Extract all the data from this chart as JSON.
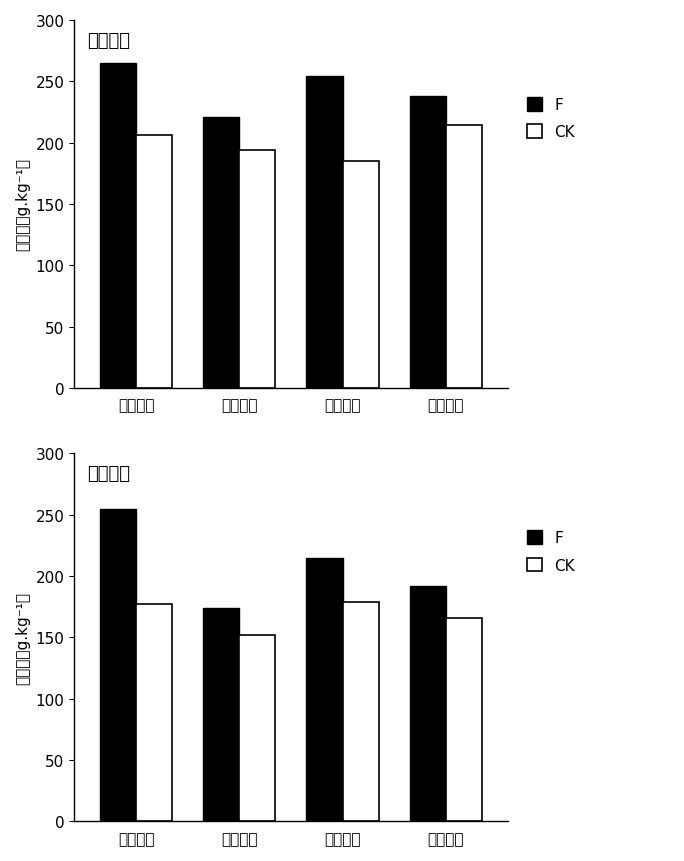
{
  "top_chart": {
    "title": "地上部分",
    "categories": [
      "重度胁迫",
      "中度胁迫",
      "轻度胁迫",
      "正常条件"
    ],
    "F_values": [
      265,
      221,
      254,
      238
    ],
    "CK_values": [
      206,
      194,
      185,
      214
    ],
    "ylabel": "砂含量（g.kg⁻¹）",
    "ylim": [
      0,
      300
    ],
    "yticks": [
      0,
      50,
      100,
      150,
      200,
      250,
      300
    ]
  },
  "bottom_chart": {
    "title": "地下部分",
    "categories": [
      "重度胁迫",
      "中度胁迫",
      "轻度胁迫",
      "正常条件"
    ],
    "F_values": [
      255,
      174,
      215,
      192
    ],
    "CK_values": [
      177,
      152,
      179,
      166
    ],
    "ylabel": "砂含量（g.kg⁻¹）",
    "ylim": [
      0,
      300
    ],
    "yticks": [
      0,
      50,
      100,
      150,
      200,
      250,
      300
    ]
  },
  "bar_width": 0.35,
  "F_color": "#000000",
  "CK_color": "#ffffff",
  "CK_edgecolor": "#000000",
  "legend_labels": [
    "F",
    "CK"
  ],
  "figure_bgcolor": "#ffffff",
  "fontsize_title": 13,
  "fontsize_tick": 11,
  "fontsize_ylabel": 11,
  "fontsize_legend": 11
}
